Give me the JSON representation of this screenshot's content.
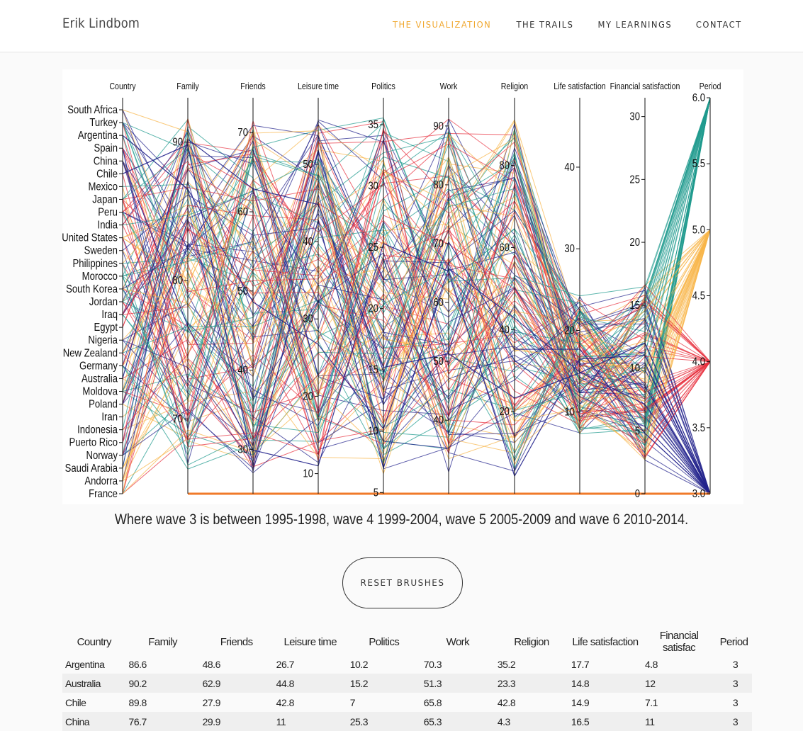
{
  "navbar": {
    "brand": "Erik Lindbom",
    "links": [
      "THE VISUALIZATION",
      "THE TRAILS",
      "MY LEARNINGS",
      "CONTACT"
    ],
    "active_index": 0,
    "active_color": "#f0a830"
  },
  "chart_data": {
    "type": "parallel-coordinates",
    "axes": [
      {
        "name": "Country",
        "type": "categorical",
        "values": [
          "South Africa",
          "Turkey",
          "Argentina",
          "Spain",
          "China",
          "Chile",
          "Mexico",
          "Japan",
          "Peru",
          "India",
          "United States",
          "Sweden",
          "Philippines",
          "Morocco",
          "South Korea",
          "Jordan",
          "Iraq",
          "Egypt",
          "Nigeria",
          "New Zealand",
          "Germany",
          "Australia",
          "Moldova",
          "Poland",
          "Iran",
          "Indonesia",
          "Puerto Rico",
          "Norway",
          "Saudi Arabia",
          "Andorra",
          "France"
        ]
      },
      {
        "name": "Family",
        "domain": [
          64.6,
          93.2
        ],
        "ticks": [
          70,
          80,
          90
        ]
      },
      {
        "name": "Friends",
        "domain": [
          24.4,
          74.4
        ],
        "ticks": [
          30,
          40,
          50,
          60,
          70
        ]
      },
      {
        "name": "Leisure time",
        "domain": [
          7.4,
          58.6
        ],
        "ticks": [
          10,
          20,
          30,
          40,
          50
        ]
      },
      {
        "name": "Politics",
        "domain": [
          4.9,
          37.2
        ],
        "ticks": [
          5,
          10,
          15,
          20,
          25,
          30,
          35
        ]
      },
      {
        "name": "Work",
        "domain": [
          27.5,
          94.8
        ],
        "ticks": [
          40,
          50,
          60,
          70,
          80,
          90
        ]
      },
      {
        "name": "Religion",
        "domain": [
          0,
          96.5
        ],
        "ticks": [
          20,
          40,
          60,
          80
        ]
      },
      {
        "name": "Life satisfaction",
        "domain": [
          0,
          48.5
        ],
        "ticks": [
          10,
          20,
          30,
          40
        ]
      },
      {
        "name": "Financial satisfaction",
        "domain": [
          0,
          31.5
        ],
        "ticks": [
          0,
          5,
          10,
          15,
          20,
          25,
          30
        ]
      },
      {
        "name": "Period",
        "domain": [
          3.0,
          6.0
        ],
        "ticks": [
          "3.0",
          "3.5",
          "4.0",
          "4.5",
          "5.0",
          "5.5",
          "6.0"
        ]
      }
    ],
    "wave_colors": {
      "3": "#23238c",
      "4": "#e8313f",
      "5": "#f8b54a",
      "6": "#1e9a8e"
    },
    "rows": [
      {
        "country": "Argentina",
        "family": 86.6,
        "friends": 48.6,
        "leisure": 26.7,
        "politics": 10.2,
        "work": 70.3,
        "religion": 35.2,
        "life": 17.7,
        "financial": 4.8,
        "period": 3
      },
      {
        "country": "Australia",
        "family": 90.2,
        "friends": 62.9,
        "leisure": 44.8,
        "politics": 15.2,
        "work": 51.3,
        "religion": 23.3,
        "life": 14.8,
        "financial": 12,
        "period": 3
      },
      {
        "country": "Chile",
        "family": 89.8,
        "friends": 27.9,
        "leisure": 42.8,
        "politics": 7,
        "work": 65.8,
        "religion": 42.8,
        "life": 14.9,
        "financial": 7.1,
        "period": 3
      },
      {
        "country": "China",
        "family": 76.7,
        "friends": 29.9,
        "leisure": 11,
        "politics": 25.3,
        "work": 65.3,
        "religion": 4.3,
        "life": 16.5,
        "financial": 11,
        "period": 3
      }
    ]
  },
  "caption": "Where wave 3 is between 1995-1998, wave 4 1999-2004, wave 5 2005-2009 and wave 6 2010-2014.",
  "reset_button": "RESET BRUSHES",
  "table": {
    "headers": [
      "Country",
      "Family",
      "Friends",
      "Leisure time",
      "Politics",
      "Work",
      "Religion",
      "Life satisfaction",
      "Financial satisfac",
      "Period"
    ],
    "rows": [
      [
        "Argentina",
        "86.6",
        "48.6",
        "26.7",
        "10.2",
        "70.3",
        "35.2",
        "17.7",
        "4.8",
        "3"
      ],
      [
        "Australia",
        "90.2",
        "62.9",
        "44.8",
        "15.2",
        "51.3",
        "23.3",
        "14.8",
        "12",
        "3"
      ],
      [
        "Chile",
        "89.8",
        "27.9",
        "42.8",
        "7",
        "65.8",
        "42.8",
        "14.9",
        "7.1",
        "3"
      ],
      [
        "China",
        "76.7",
        "29.9",
        "11",
        "25.3",
        "65.3",
        "4.3",
        "16.5",
        "11",
        "3"
      ]
    ]
  }
}
